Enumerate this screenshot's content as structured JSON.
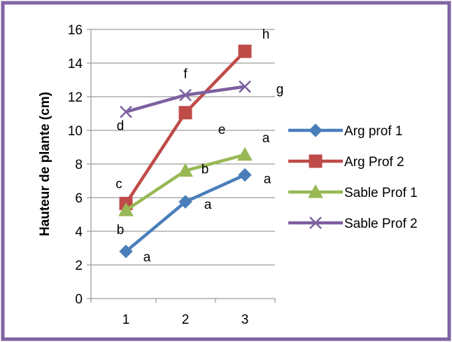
{
  "chart_data": {
    "type": "line",
    "title": "",
    "xlabel": "",
    "ylabel": "Hauteur de plante (cm)",
    "x": [
      1,
      2,
      3
    ],
    "ylim": [
      0,
      16
    ],
    "yticks": [
      0,
      2,
      4,
      6,
      8,
      10,
      12,
      14,
      16
    ],
    "grid": "horizontal",
    "legend_position": "right",
    "series": [
      {
        "name": "Arg prof 1",
        "values": [
          2.8,
          5.75,
          7.35
        ],
        "color": "#4a7ebb",
        "marker": "diamond",
        "letters": [
          "a",
          "a",
          "a"
        ]
      },
      {
        "name": "Arg Prof 2",
        "values": [
          5.65,
          11.05,
          14.7
        ],
        "color": "#be4b48",
        "marker": "square",
        "letters": [
          "c",
          "e",
          "h"
        ]
      },
      {
        "name": "Sable Prof 1",
        "values": [
          5.25,
          7.6,
          8.55
        ],
        "color": "#98b954",
        "marker": "triangle",
        "letters": [
          "b",
          "b",
          "a"
        ]
      },
      {
        "name": "Sable Prof 2",
        "values": [
          11.1,
          12.1,
          12.6
        ],
        "color": "#7d60a0",
        "marker": "x",
        "letters": [
          "d",
          "f",
          "g"
        ]
      }
    ],
    "frame_color": "#8064a2"
  }
}
